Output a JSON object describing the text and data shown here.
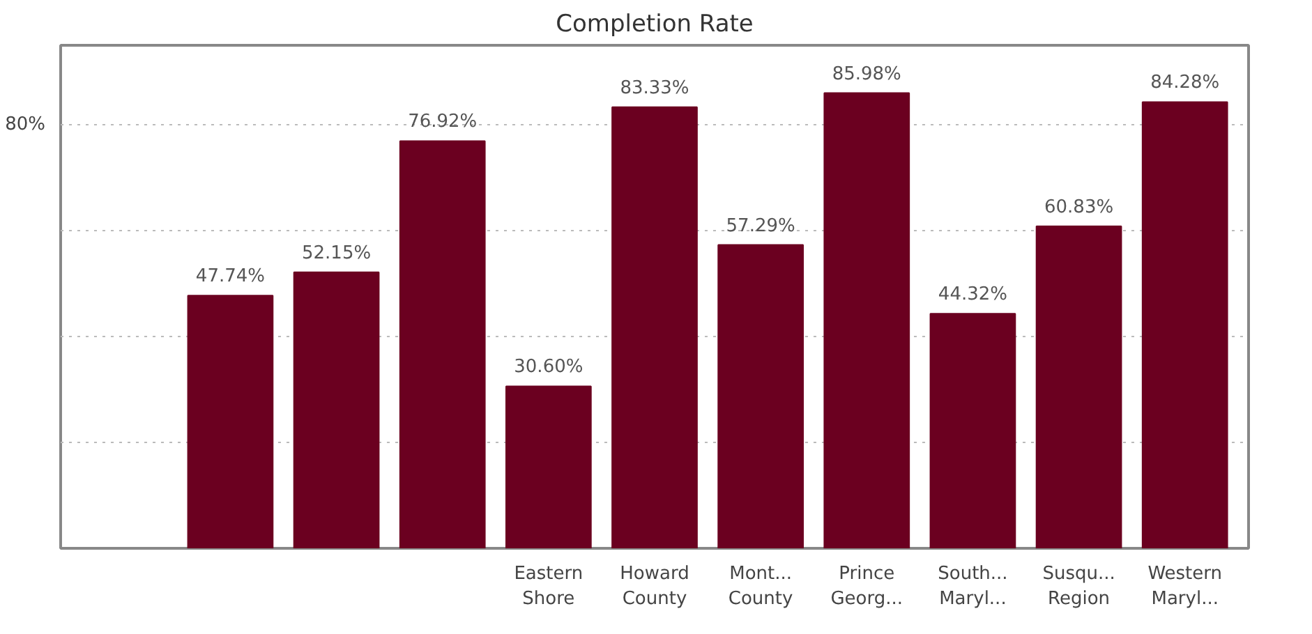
{
  "chart_data": {
    "type": "bar",
    "title": "Completion Rate",
    "categories": [
      null,
      null,
      null,
      null,
      "Eastern Shore",
      "Howard County",
      "Mont... County",
      "Prince Georg...",
      "South... Maryl...",
      "Susqu... Region",
      "Western Maryl..."
    ],
    "values": [
      null,
      47.74,
      52.15,
      76.92,
      30.6,
      83.33,
      57.29,
      85.98,
      44.32,
      60.83,
      84.28
    ],
    "color": "#6b0020",
    "value_labels": [
      null,
      "47.74%",
      "52.15%",
      "76.92%",
      "30.60%",
      "83.33%",
      "57.29%",
      "85.98%",
      "44.32%",
      "60.83%",
      "84.28%"
    ],
    "ylim": [
      0,
      95
    ],
    "yticks": [
      {
        "value": 20,
        "label": null
      },
      {
        "value": 40,
        "label": null
      },
      {
        "value": 60,
        "label": null
      },
      {
        "value": 80,
        "label": "80%"
      }
    ],
    "grid": "y"
  }
}
